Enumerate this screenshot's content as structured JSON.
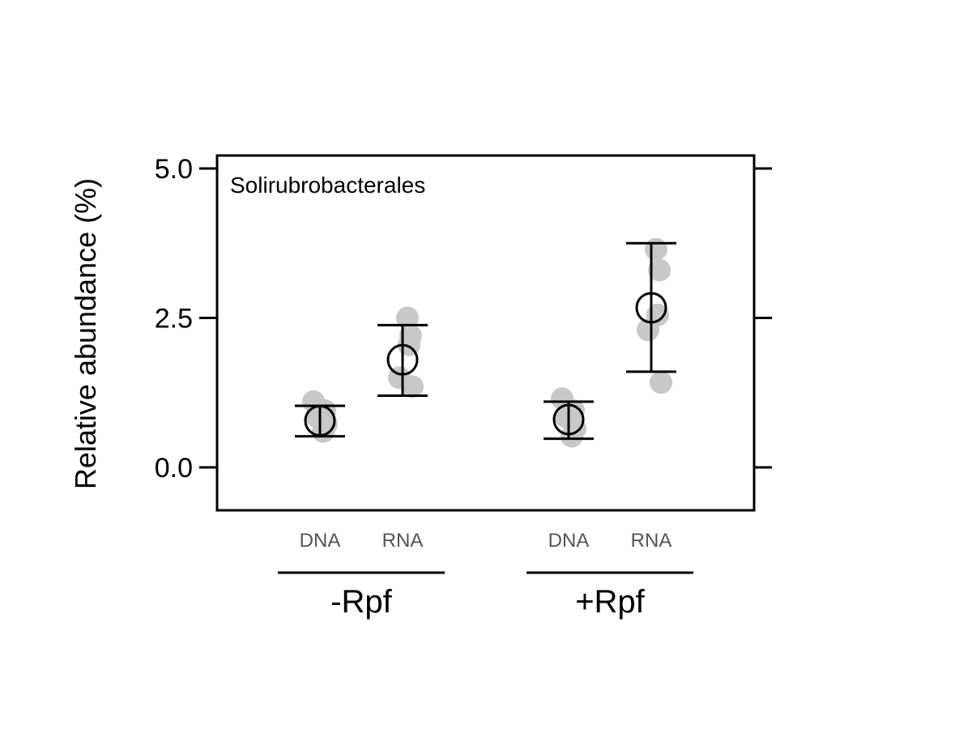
{
  "chart_data": {
    "type": "scatter",
    "title": "",
    "panel_label": "Solirubrobacterales",
    "ylabel": "Relative abundance (%)",
    "xlabel": "",
    "ylim": [
      -0.7,
      5.2
    ],
    "yticks": [
      0,
      2.5,
      5
    ],
    "ytick_labels": [
      "0.0",
      "2.5",
      "5.0"
    ],
    "grid": false,
    "groups": [
      {
        "label": "-Rpf",
        "subgroups": [
          {
            "label": "DNA",
            "mean": 0.78,
            "lower": 0.52,
            "upper": 1.03,
            "points": [
              1.1,
              0.95,
              0.85,
              0.72,
              0.6
            ]
          },
          {
            "label": "RNA",
            "mean": 1.8,
            "lower": 1.2,
            "upper": 2.38,
            "points": [
              2.5,
              2.2,
              2.05,
              1.5,
              1.35
            ]
          }
        ]
      },
      {
        "label": "+Rpf",
        "subgroups": [
          {
            "label": "DNA",
            "mean": 0.8,
            "lower": 0.48,
            "upper": 1.1,
            "points": [
              1.15,
              0.95,
              0.85,
              0.65,
              0.52
            ]
          },
          {
            "label": "RNA",
            "mean": 2.67,
            "lower": 1.6,
            "upper": 3.75,
            "points": [
              3.65,
              3.3,
              2.55,
              2.3,
              1.42
            ]
          }
        ]
      }
    ],
    "colors": {
      "points": "#c8c8c8",
      "summary": "#000000",
      "frame": "#000000"
    }
  }
}
